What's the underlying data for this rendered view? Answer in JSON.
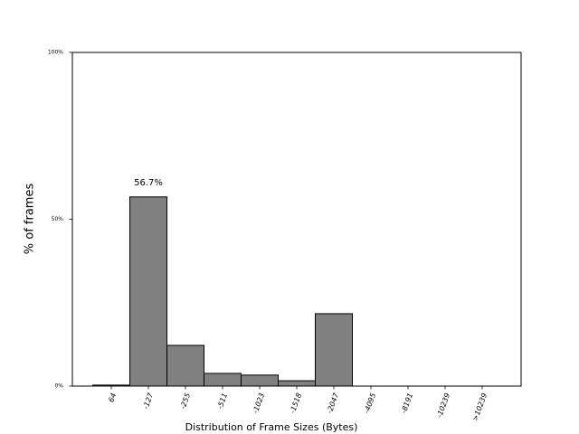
{
  "chart_data": {
    "type": "bar",
    "x_label": "Distribution of Frame Sizes (Bytes)",
    "y_label": "% of frames",
    "categories": [
      "64",
      "-127",
      "-255",
      "-511",
      "-1023",
      "-1518",
      "-2047",
      "-4095",
      "-8191",
      "-10239",
      ">10239"
    ],
    "values": [
      0.3,
      56.7,
      12.2,
      3.8,
      3.3,
      1.6,
      21.7,
      0,
      0,
      0,
      0
    ],
    "value_labels": [
      null,
      "56.7%",
      null,
      null,
      null,
      null,
      null,
      null,
      null,
      null,
      null
    ],
    "color": "#808080",
    "edge_color": "#000000",
    "ylim": [
      0,
      100
    ],
    "yticks": [
      {
        "value": 0,
        "label": "0%"
      },
      {
        "value": 50,
        "label": "50%"
      },
      {
        "value": 100,
        "label": "100%"
      }
    ]
  }
}
